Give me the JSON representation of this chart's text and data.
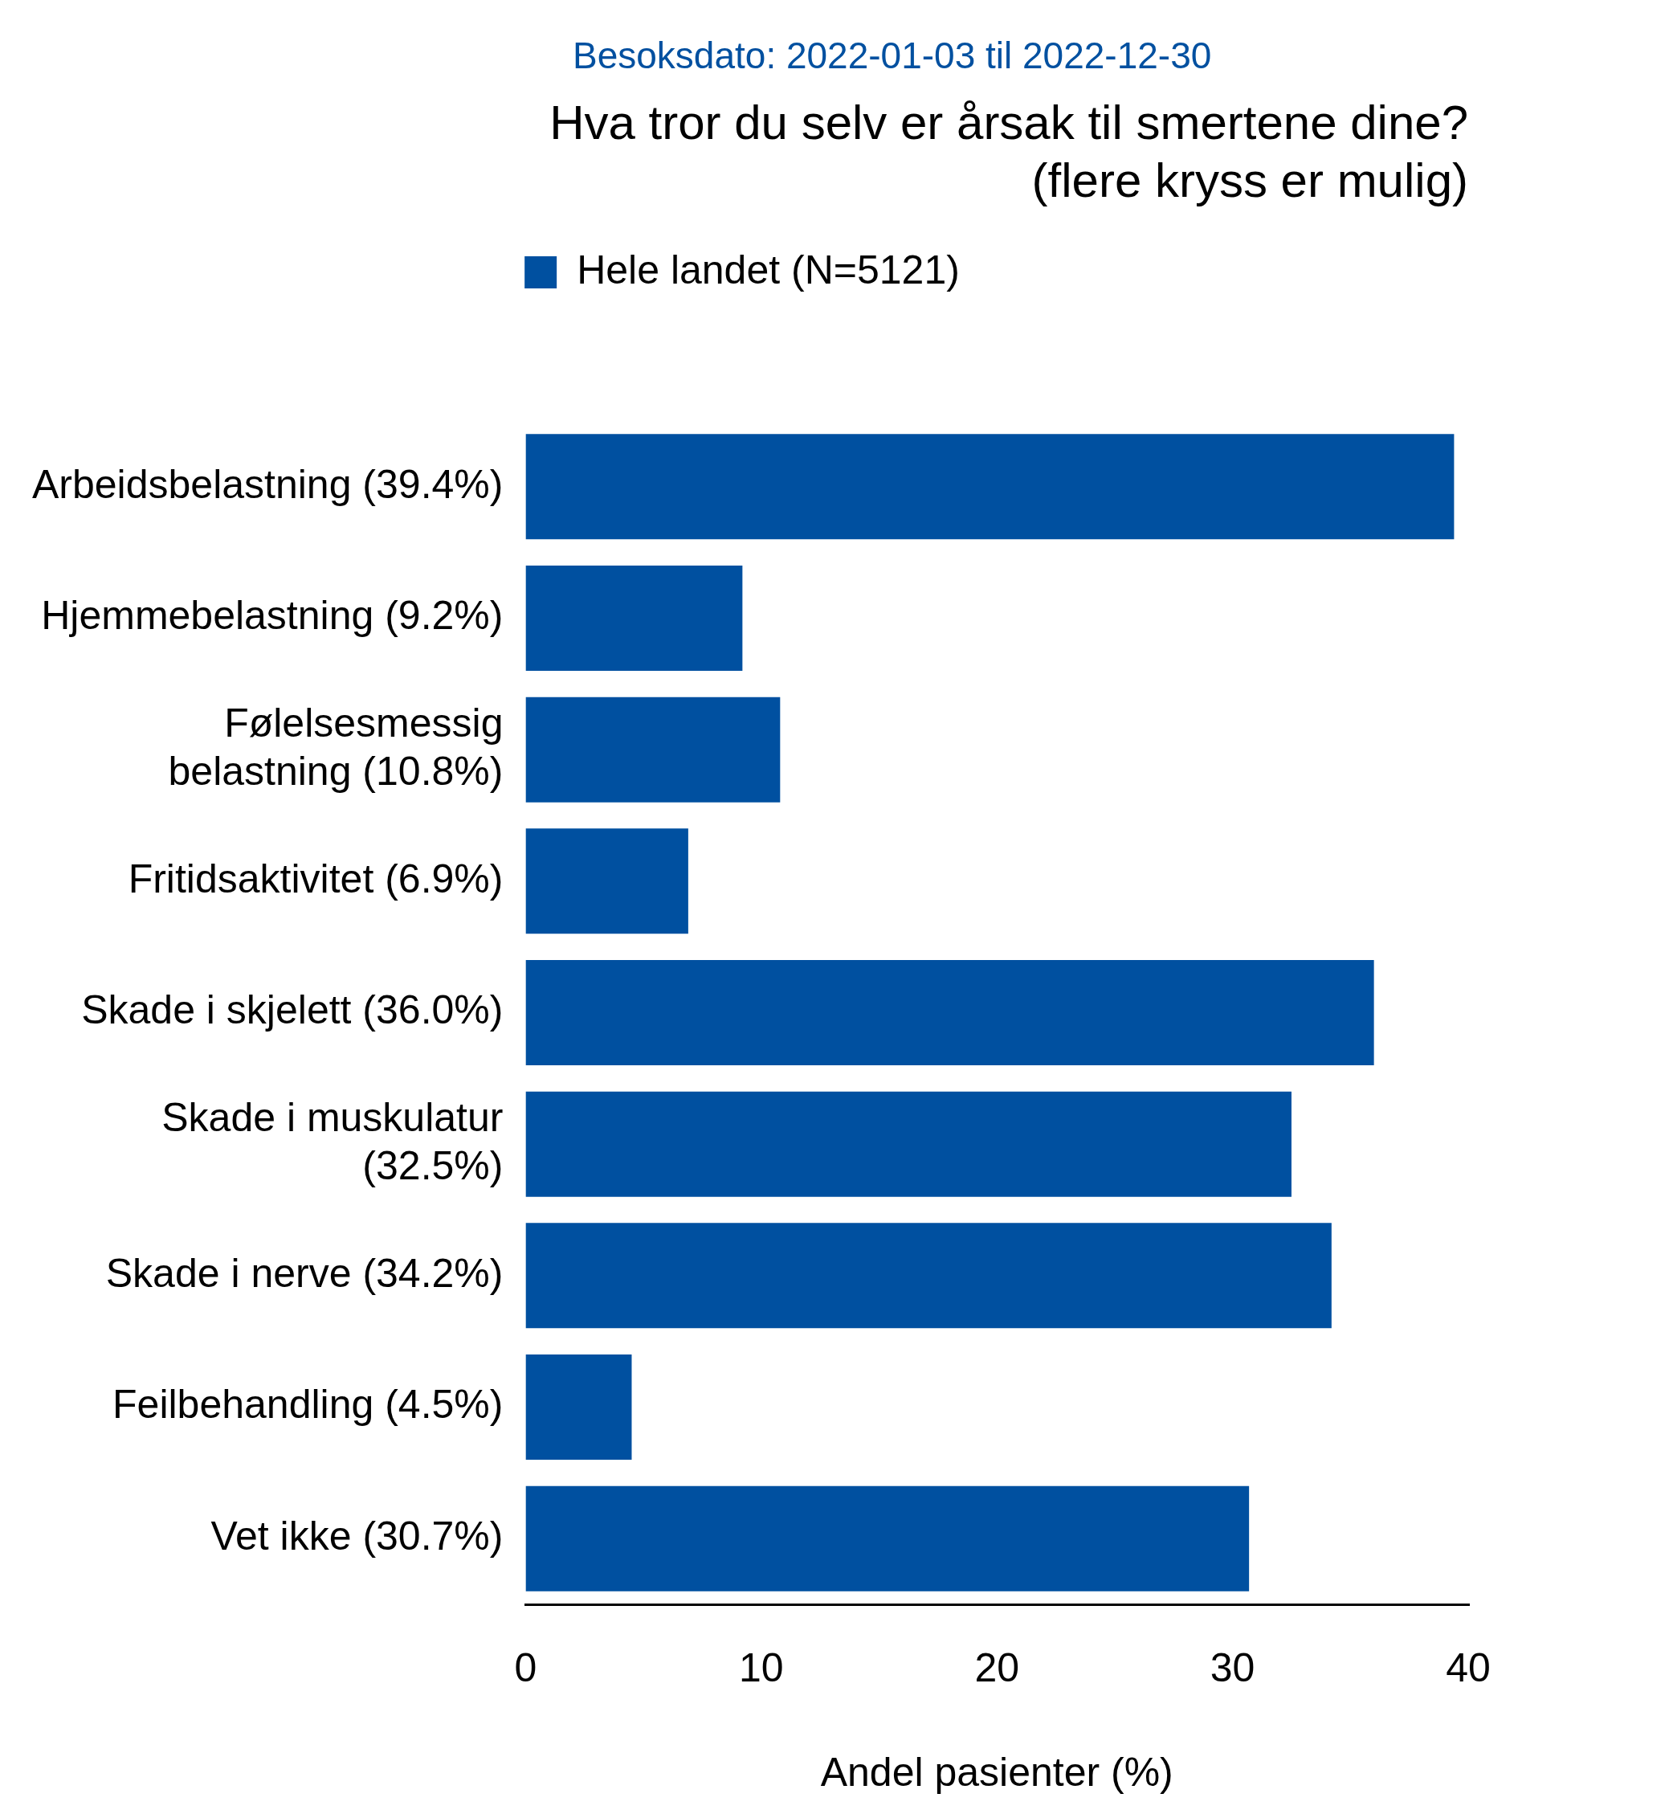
{
  "chart_data": {
    "type": "bar",
    "orientation": "horizontal",
    "subtitle": "Besoksdato: 2022-01-03 til 2022-12-30",
    "title": "Hva tror du selv er årsak til smertene dine? (flere kryss er mulig)",
    "xlabel": "Andel pasienter (%)",
    "categories": [
      "Arbeidsbelastning (39.4%)",
      "Hjemmebelastning (9.2%)",
      "Følelsesmessig belastning (10.8%)",
      "Fritidsaktivitet (6.9%)",
      "Skade i skjelett (36.0%)",
      "Skade i muskulatur (32.5%)",
      "Skade i nerve (34.2%)",
      "Feilbehandling (4.5%)",
      "Vet ikke (30.7%)"
    ],
    "series": [
      {
        "name": "Hele landet (N=5121)",
        "color": "#0050a0",
        "values": [
          39.4,
          9.2,
          10.8,
          6.9,
          36.0,
          32.5,
          34.2,
          4.5,
          30.7
        ]
      }
    ],
    "xlim": [
      0,
      40
    ],
    "xticks": [
      0,
      10,
      20,
      30,
      40
    ],
    "legend": "top",
    "grid": false
  }
}
